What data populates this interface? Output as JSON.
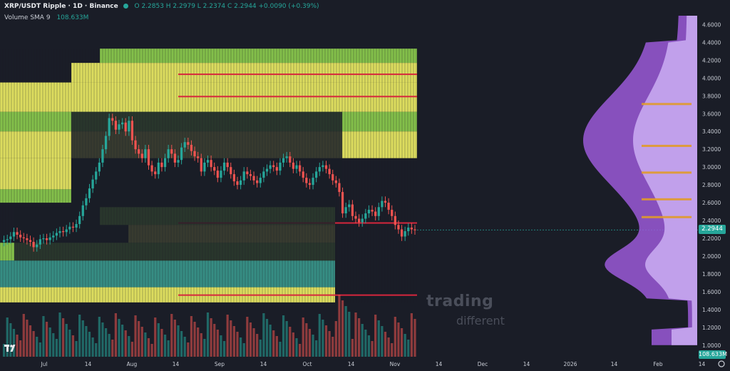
{
  "header": {
    "symbol": "XRP/USDT Ripple · 1D · Binance",
    "ohlc": "O 2.2853  H 2.2979  L 2.2374  C 2.2944  +0.0090 (+0.39%)",
    "volume_label": "Volume SMA 9",
    "volume_value": "108.633M"
  },
  "watermark": {
    "line1": "trading",
    "line2": "different"
  },
  "price_tag": "2.2944",
  "volume_tag": "108.633M",
  "colors": {
    "background": "#1a1d27",
    "up": "#26a69a",
    "down": "#ef5350",
    "heat_yellow": "#f2f265",
    "heat_green": "#8fd14f",
    "heat_teal": "#3a9a8e",
    "heat_red": "#d7263d",
    "profile_purple": "#9b59d8",
    "profile_light": "#c8a8f0",
    "profile_orange": "#e09a2a"
  },
  "icons": {
    "logo": "tradingview-logo-icon",
    "settings": "settings-gear-icon"
  },
  "chart_data": {
    "type": "candlestick",
    "price_axis": {
      "ticks": [
        "4.6000",
        "4.4000",
        "4.2000",
        "4.0000",
        "3.8000",
        "3.6000",
        "3.4000",
        "3.2000",
        "3.0000",
        "2.8000",
        "2.6000",
        "2.4000",
        "2.2000",
        "2.0000",
        "1.8000",
        "1.6000",
        "1.4000",
        "1.2000",
        "1.0000"
      ],
      "range": [
        0.9,
        4.75
      ]
    },
    "time_axis": {
      "ticks": [
        "Jul",
        "14",
        "Aug",
        "14",
        "Sep",
        "14",
        "Oct",
        "14",
        "Nov",
        "14",
        "Dec",
        "14",
        "2026",
        "14",
        "Feb",
        "14"
      ]
    },
    "last_close": 2.2944,
    "candles_close": [
      2.18,
      2.19,
      2.22,
      2.27,
      2.24,
      2.21,
      2.2,
      2.18,
      2.16,
      2.1,
      2.13,
      2.19,
      2.2,
      2.18,
      2.21,
      2.23,
      2.26,
      2.28,
      2.27,
      2.3,
      2.33,
      2.32,
      2.36,
      2.45,
      2.57,
      2.65,
      2.76,
      2.86,
      2.95,
      3.05,
      3.2,
      3.35,
      3.55,
      3.52,
      3.42,
      3.48,
      3.5,
      3.4,
      3.52,
      3.3,
      3.2,
      3.15,
      3.1,
      3.2,
      3.02,
      2.95,
      2.92,
      3.05,
      3.0,
      3.1,
      3.2,
      3.15,
      3.05,
      3.08,
      3.22,
      3.28,
      3.25,
      3.18,
      3.12,
      3.1,
      2.95,
      3.05,
      3.08,
      3.0,
      2.96,
      2.88,
      2.96,
      3.05,
      3.0,
      2.92,
      2.84,
      2.8,
      2.85,
      2.95,
      2.92,
      2.9,
      2.85,
      2.82,
      2.88,
      2.95,
      2.98,
      3.02,
      3.0,
      2.96,
      3.05,
      3.1,
      3.12,
      3.05,
      2.98,
      3.02,
      2.95,
      2.88,
      2.82,
      2.8,
      2.88,
      2.95,
      3.0,
      3.02,
      2.98,
      2.92,
      2.85,
      2.82,
      2.72,
      2.48,
      2.55,
      2.58,
      2.45,
      2.42,
      2.38,
      2.42,
      2.48,
      2.52,
      2.5,
      2.45,
      2.55,
      2.62,
      2.6,
      2.52,
      2.45,
      2.35,
      2.3,
      2.22,
      2.28,
      2.32,
      2.3,
      2.29
    ],
    "volume_sma": "108.633M"
  }
}
